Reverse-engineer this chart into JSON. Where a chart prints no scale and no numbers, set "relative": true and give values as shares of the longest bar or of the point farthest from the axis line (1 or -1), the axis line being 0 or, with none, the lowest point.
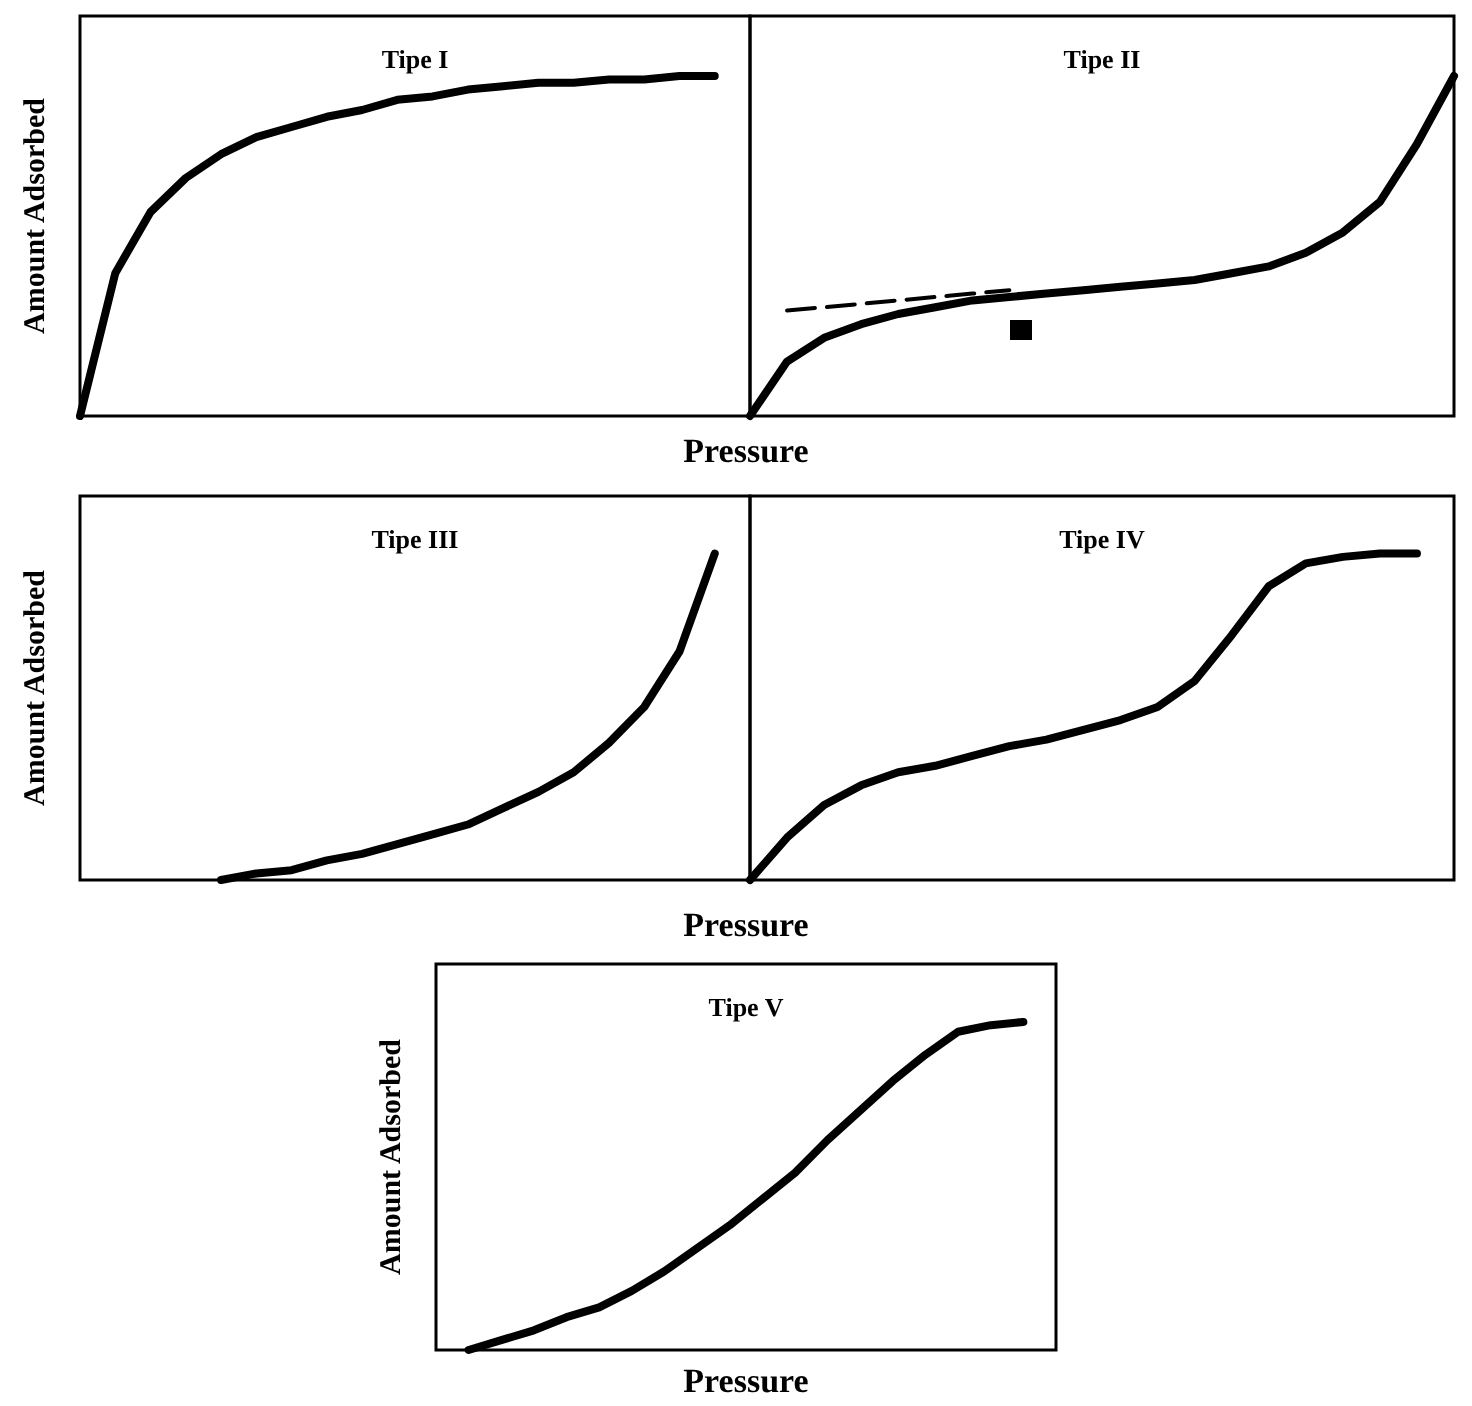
{
  "chart_data": [
    {
      "type": "line",
      "title": "Tipe I",
      "ylabel": "Amount Adsorbed",
      "xlabel": "Pressure",
      "relative": true,
      "categories": [
        null,
        null,
        null,
        null,
        null,
        null,
        null,
        null,
        null,
        null,
        null,
        null,
        null,
        null,
        null,
        null,
        null,
        null,
        null,
        null
      ],
      "series": [
        {
          "color": "#000000",
          "values": [
            0,
            0.42,
            0.6,
            0.7,
            0.77,
            0.82,
            0.85,
            0.88,
            0.9,
            0.93,
            0.94,
            0.96,
            0.97,
            0.98,
            0.98,
            0.99,
            0.99,
            1,
            1,
            null
          ]
        }
      ]
    },
    {
      "type": "line",
      "title": "Tipe II",
      "relative": true,
      "categories": [
        null,
        null,
        null,
        null,
        null,
        null,
        null,
        null,
        null,
        null,
        null,
        null,
        null,
        null,
        null,
        null,
        null,
        null,
        null,
        null
      ],
      "series": [
        {
          "color": "#000000",
          "values": [
            0,
            0.16,
            0.23,
            0.27,
            0.3,
            0.32,
            0.34,
            0.35,
            0.36,
            0.37,
            0.38,
            0.39,
            0.4,
            0.42,
            0.44,
            0.48,
            0.54,
            0.63,
            0.8,
            1
          ]
        },
        {
          "color": "#000000",
          "line_style": "dashed",
          "values": [
            null,
            0.31,
            0.32,
            0.33,
            0.34,
            0.35,
            0.36,
            0.37,
            null,
            null,
            null,
            null,
            null,
            null,
            null,
            null,
            null,
            null,
            null,
            null
          ]
        }
      ]
    },
    {
      "type": "line",
      "title": "Tipe III",
      "ylabel": "Amount Adsorbed",
      "xlabel": "Pressure",
      "relative": true,
      "categories": [
        null,
        null,
        null,
        null,
        null,
        null,
        null,
        null,
        null,
        null,
        null,
        null,
        null,
        null,
        null,
        null,
        null,
        null,
        null,
        null
      ],
      "series": [
        {
          "color": "#000000",
          "values": [
            null,
            null,
            null,
            null,
            0,
            0.02,
            0.03,
            0.06,
            0.08,
            0.11,
            0.14,
            0.17,
            0.22,
            0.27,
            0.33,
            0.42,
            0.53,
            0.7,
            1,
            null
          ]
        }
      ]
    },
    {
      "type": "line",
      "title": "Tipe IV",
      "relative": true,
      "categories": [
        null,
        null,
        null,
        null,
        null,
        null,
        null,
        null,
        null,
        null,
        null,
        null,
        null,
        null,
        null,
        null,
        null,
        null,
        null,
        null
      ],
      "series": [
        {
          "color": "#000000",
          "values": [
            0,
            0.13,
            0.23,
            0.29,
            0.33,
            0.35,
            0.38,
            0.41,
            0.43,
            0.46,
            0.49,
            0.53,
            0.61,
            0.75,
            0.9,
            0.97,
            0.99,
            1,
            1,
            null
          ]
        }
      ]
    },
    {
      "type": "line",
      "title": "Tipe V",
      "ylabel": "Amount Adsorbed",
      "xlabel": "Pressure",
      "relative": true,
      "categories": [
        null,
        null,
        null,
        null,
        null,
        null,
        null,
        null,
        null,
        null,
        null,
        null,
        null,
        null,
        null,
        null,
        null,
        null,
        null,
        null
      ],
      "series": [
        {
          "color": "#000000",
          "values": [
            null,
            0,
            0.03,
            0.06,
            0.1,
            0.13,
            0.18,
            0.24,
            0.31,
            0.38,
            0.46,
            0.54,
            0.64,
            0.73,
            0.82,
            0.9,
            0.97,
            0.99,
            1,
            null
          ]
        }
      ]
    }
  ]
}
